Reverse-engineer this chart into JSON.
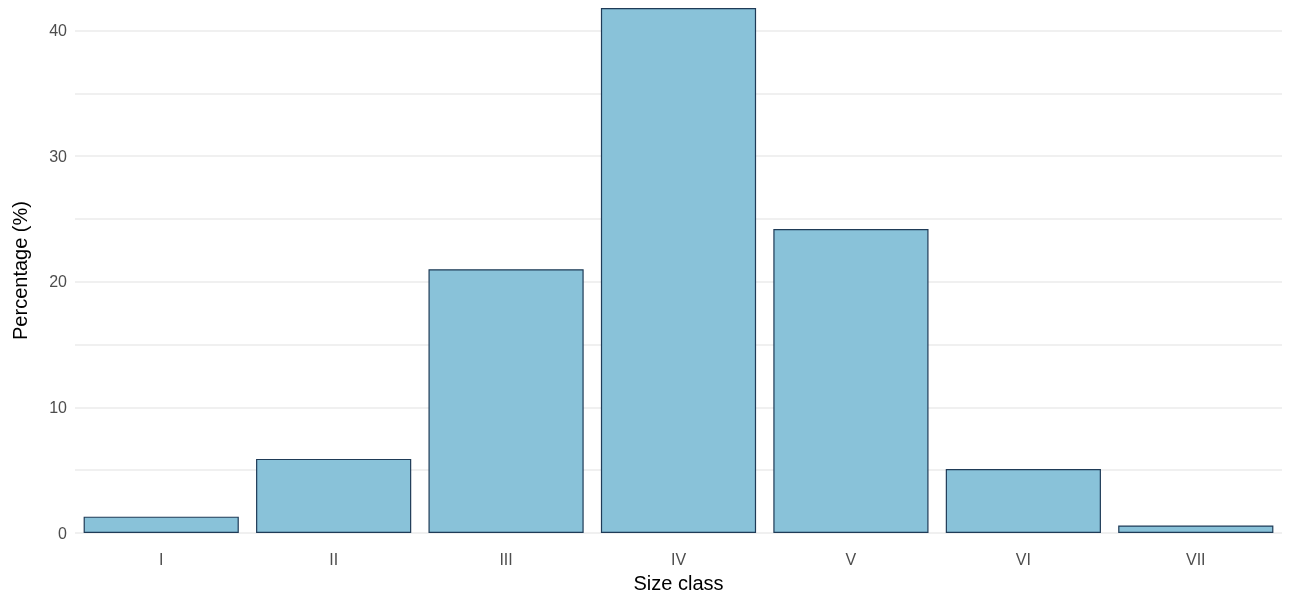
{
  "chart_data": {
    "type": "bar",
    "xlabel": "Size class",
    "ylabel": "Percentage (%)",
    "categories": [
      "I",
      "II",
      "III",
      "IV",
      "V",
      "VI",
      "VII"
    ],
    "values": [
      1.3,
      5.9,
      21.0,
      41.8,
      24.2,
      5.1,
      0.6
    ],
    "color": "#89c2d9",
    "ylim": [
      0,
      41.8
    ],
    "yticks": [
      0,
      {
        "value": 5,
        "label": null
      },
      10,
      {
        "value": 15,
        "label": null
      },
      20,
      {
        "value": 25,
        "label": null
      },
      30,
      {
        "value": 35,
        "label": null
      },
      40
    ],
    "grid": "y"
  }
}
